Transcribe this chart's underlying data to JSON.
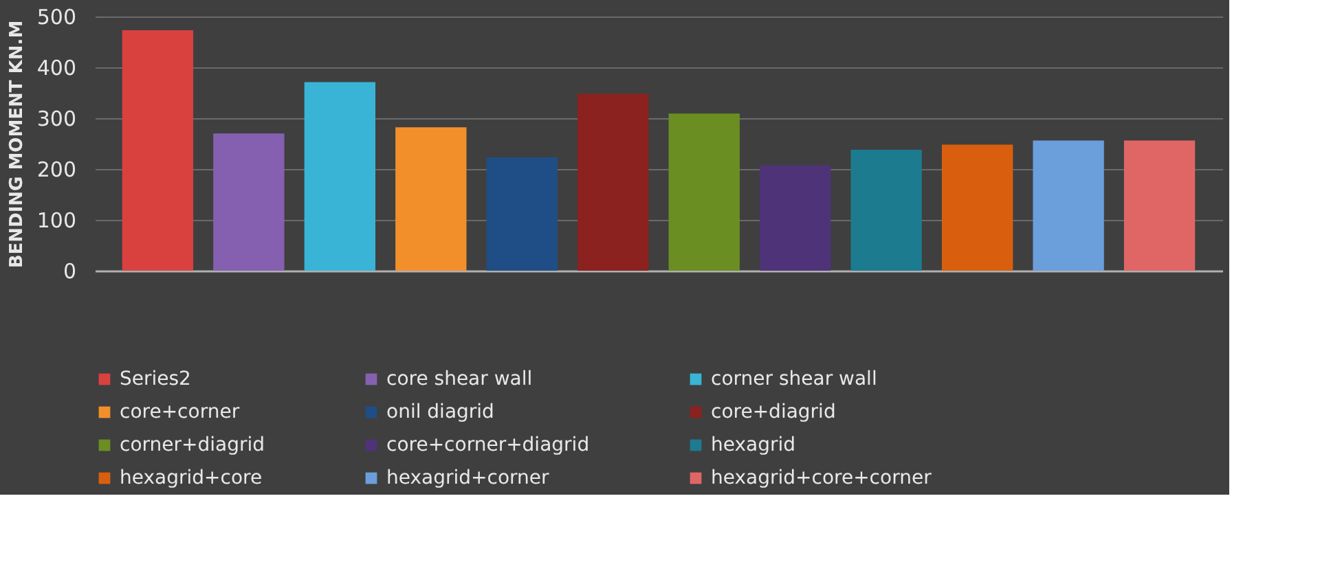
{
  "chart_data": {
    "type": "bar",
    "ylabel": "BENDING MOMENT KN.M",
    "categories": [
      null
    ],
    "ylim": [
      0,
      500
    ],
    "yticks": [
      0,
      100,
      200,
      300,
      400,
      500
    ],
    "grid": "y",
    "legend": "bottom",
    "series": [
      {
        "name": "Series2",
        "color": "#d9413f",
        "values": [
          473
        ]
      },
      {
        "name": "core shear wall",
        "color": "#8560b0",
        "values": [
          270
        ]
      },
      {
        "name": "corner shear wall",
        "color": "#3ab4d6",
        "values": [
          371
        ]
      },
      {
        "name": "core+corner",
        "color": "#f38f2a",
        "values": [
          282
        ]
      },
      {
        "name": "onil diagrid",
        "color": "#1f4e86",
        "values": [
          223
        ]
      },
      {
        "name": "core+diagrid",
        "color": "#8b2220",
        "values": [
          348
        ]
      },
      {
        "name": "corner+diagrid",
        "color": "#6b8e23",
        "values": [
          309
        ]
      },
      {
        "name": "core+corner+diagrid",
        "color": "#4f3378",
        "values": [
          207
        ]
      },
      {
        "name": "hexagrid",
        "color": "#1d7b90",
        "values": [
          238
        ]
      },
      {
        "name": "hexagrid+core",
        "color": "#d95f0e",
        "values": [
          248
        ]
      },
      {
        "name": "hexagrid+corner",
        "color": "#6a9fdc",
        "values": [
          256
        ]
      },
      {
        "name": "hexagrid+core+corner",
        "color": "#e06666",
        "values": [
          256
        ]
      }
    ]
  }
}
